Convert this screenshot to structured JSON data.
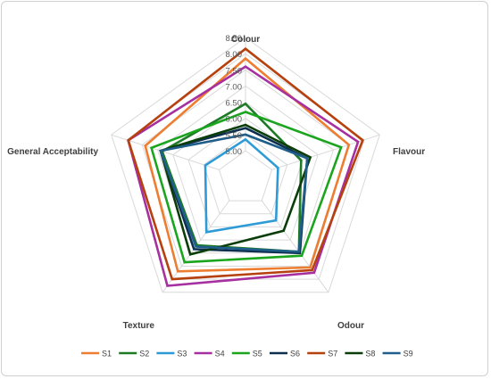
{
  "chart_data": {
    "type": "radar",
    "axes": [
      "Colour",
      "Flavour",
      "Odour",
      "Texture",
      "General Acceptability"
    ],
    "rmin": 5.0,
    "rmax": 8.5,
    "ticks": [
      5.0,
      5.5,
      6.0,
      6.5,
      7.0,
      7.5,
      8.0,
      8.5
    ],
    "tick_labels": [
      "5.00",
      "5.50",
      "6.00",
      "6.50",
      "7.00",
      "7.50",
      "8.00",
      "8.50"
    ],
    "grid": true,
    "legend_position": "bottom",
    "series": [
      {
        "name": "S1",
        "color": "#ED7D31",
        "values": [
          7.85,
          7.5,
          7.55,
          7.7,
          7.4
        ]
      },
      {
        "name": "S2",
        "color": "#1E7B25",
        "values": [
          6.45,
          5.95,
          6.95,
          6.7,
          6.85
        ]
      },
      {
        "name": "S3",
        "color": "#2E9BD6",
        "values": [
          5.35,
          5.2,
          5.75,
          6.2,
          5.45
        ]
      },
      {
        "name": "S4",
        "color": "#A6309F",
        "values": [
          7.6,
          7.8,
          7.75,
          8.25,
          7.95
        ]
      },
      {
        "name": "S5",
        "color": "#1BA51F",
        "values": [
          6.2,
          7.25,
          7.1,
          7.35,
          7.2
        ]
      },
      {
        "name": "S6",
        "color": "#0D2F4F",
        "values": [
          5.7,
          6.15,
          7.0,
          6.85,
          6.9
        ]
      },
      {
        "name": "S7",
        "color": "#B7410E",
        "values": [
          8.15,
          7.95,
          7.65,
          8.0,
          7.95
        ]
      },
      {
        "name": "S8",
        "color": "#0A3D0A",
        "values": [
          5.8,
          6.25,
          6.15,
          7.05,
          6.9
        ]
      },
      {
        "name": "S9",
        "color": "#1F5E8A",
        "values": [
          5.5,
          6.15,
          6.95,
          6.75,
          6.9
        ]
      }
    ]
  }
}
